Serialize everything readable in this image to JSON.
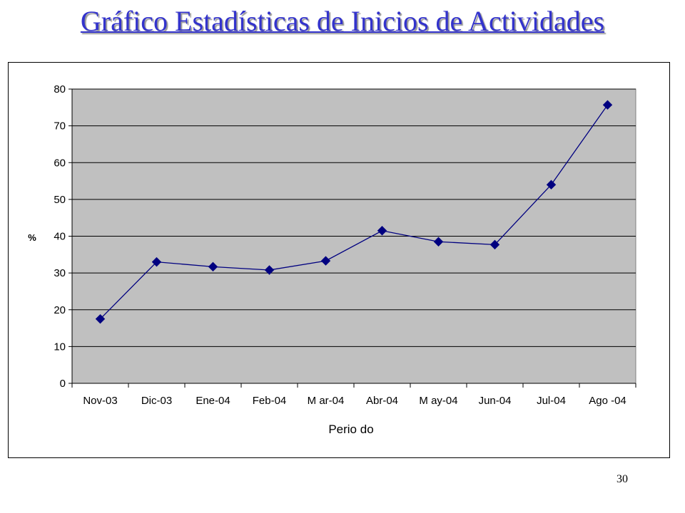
{
  "slide": {
    "title": "Gráfico Estadísticas de Inicios de Actividades",
    "page_number": "30"
  },
  "colors": {
    "title": "#3333cc",
    "plot_area": "#c0c0c0",
    "series": "#000080"
  },
  "chart_data": {
    "type": "line",
    "title": "",
    "xlabel": "Perio do",
    "ylabel": "",
    "y_axis_marker": "%",
    "categories": [
      "Nov-03",
      "Dic-03",
      "Ene-04",
      "Feb-04",
      "M ar-04",
      "Abr-04",
      "M ay-04",
      "Jun-04",
      "Jul-04",
      "Ago -04"
    ],
    "series": [
      {
        "values": [
          17.5,
          33,
          31.7,
          30.8,
          33.3,
          41.5,
          38.5,
          37.7,
          54,
          75.7
        ]
      }
    ],
    "ylim": [
      0,
      80
    ],
    "yticks": [
      0,
      10,
      20,
      30,
      40,
      50,
      60,
      70,
      80
    ],
    "ytick_labels": [
      "0",
      "10",
      "20",
      "30",
      "40",
      "50",
      "60",
      "70",
      "80"
    ],
    "marker": "diamond",
    "grid": true,
    "legend": "none"
  }
}
